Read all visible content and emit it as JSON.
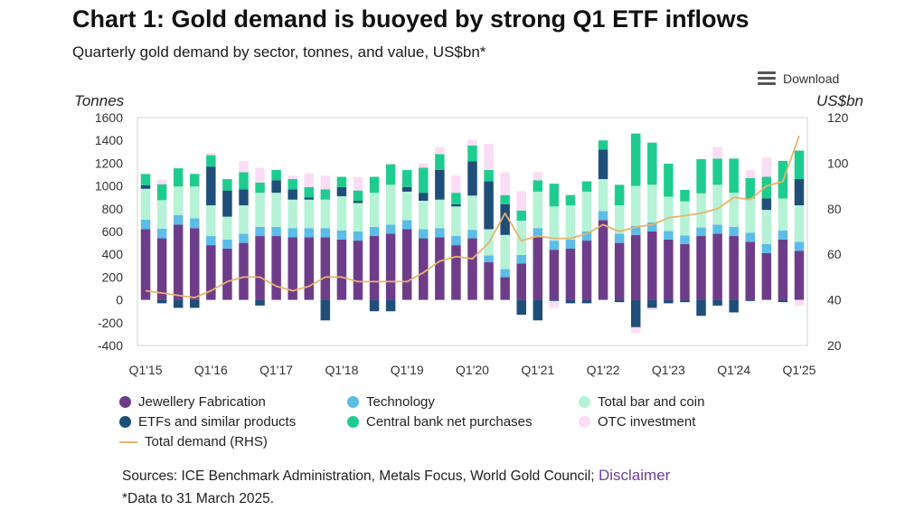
{
  "header": {
    "title": "Chart 1: Gold demand is buoyed by strong Q1 ETF inflows",
    "subtitle": "Quarterly gold demand by sector, tonnes, and value, US$bn*",
    "download_label": "Download"
  },
  "legend": {
    "jewellery": "Jewellery Fabrication",
    "technology": "Technology",
    "bar_coin": "Total bar and coin",
    "etf": "ETFs and similar products",
    "central_bank": "Central bank net purchases",
    "otc": "OTC investment",
    "total": "Total demand (RHS)"
  },
  "footer": {
    "sources": "Sources: ICE Benchmark Administration, Metals Focus, World Gold Council;",
    "disclaimer": "Disclaimer",
    "note": "*Data to 31 March 2025."
  },
  "colors": {
    "jewellery": "#6e3d8a",
    "technology": "#5bbde8",
    "bar_coin": "#b5f2d6",
    "etf": "#1f4e79",
    "central_bank": "#1fcc8f",
    "otc": "#fbdcf5",
    "total": "#e8b46a"
  },
  "chart_data": {
    "type": "bar",
    "stacked": true,
    "title": "Chart 1: Gold demand is buoyed by strong Q1 ETF inflows",
    "ylabel": "Tonnes",
    "y2label": "US$bn",
    "ylim": [
      -400,
      1600
    ],
    "y2lim": [
      20,
      120
    ],
    "yticks": [
      -400,
      -200,
      0,
      200,
      400,
      600,
      800,
      1000,
      1200,
      1400,
      1600
    ],
    "y2ticks": [
      20,
      40,
      60,
      80,
      100,
      120
    ],
    "xtick_labels": [
      "Q1'15",
      "Q1'16",
      "Q1'17",
      "Q1'18",
      "Q1'19",
      "Q1'20",
      "Q1'21",
      "Q1'22",
      "Q1'23",
      "Q1'24",
      "Q1'25"
    ],
    "categories": [
      "Q1'15",
      "Q2'15",
      "Q3'15",
      "Q4'15",
      "Q1'16",
      "Q2'16",
      "Q3'16",
      "Q4'16",
      "Q1'17",
      "Q2'17",
      "Q3'17",
      "Q4'17",
      "Q1'18",
      "Q2'18",
      "Q3'18",
      "Q4'18",
      "Q1'19",
      "Q2'19",
      "Q3'19",
      "Q4'19",
      "Q1'20",
      "Q2'20",
      "Q3'20",
      "Q4'20",
      "Q1'21",
      "Q2'21",
      "Q3'21",
      "Q4'21",
      "Q1'22",
      "Q2'22",
      "Q3'22",
      "Q4'22",
      "Q1'23",
      "Q2'23",
      "Q3'23",
      "Q4'23",
      "Q1'24",
      "Q2'24",
      "Q3'24",
      "Q4'24",
      "Q1'25"
    ],
    "series": [
      {
        "name": "Jewellery Fabrication",
        "key": "jewellery",
        "values": [
          620,
          540,
          660,
          630,
          480,
          450,
          500,
          560,
          560,
          550,
          550,
          550,
          530,
          520,
          560,
          580,
          620,
          540,
          550,
          480,
          540,
          330,
          200,
          320,
          550,
          440,
          450,
          520,
          700,
          500,
          570,
          600,
          530,
          490,
          560,
          580,
          560,
          510,
          410,
          530,
          430
        ]
      },
      {
        "name": "Technology",
        "key": "technology",
        "values": [
          85,
          85,
          85,
          85,
          80,
          80,
          80,
          80,
          80,
          80,
          80,
          80,
          80,
          80,
          80,
          80,
          80,
          80,
          80,
          80,
          75,
          60,
          70,
          75,
          80,
          80,
          80,
          80,
          80,
          80,
          80,
          80,
          75,
          75,
          75,
          80,
          80,
          80,
          80,
          80,
          80
        ]
      },
      {
        "name": "Total bar and coin",
        "key": "bar_coin",
        "values": [
          270,
          250,
          250,
          280,
          270,
          200,
          250,
          300,
          300,
          250,
          250,
          250,
          300,
          250,
          300,
          350,
          250,
          250,
          250,
          260,
          300,
          230,
          300,
          300,
          320,
          300,
          300,
          350,
          280,
          250,
          350,
          330,
          300,
          300,
          300,
          350,
          300,
          300,
          300,
          280,
          320
        ]
      },
      {
        "name": "ETFs and similar products",
        "key": "etf",
        "values": [
          30,
          -30,
          -70,
          -70,
          340,
          230,
          140,
          -50,
          110,
          90,
          20,
          -180,
          80,
          20,
          -100,
          -100,
          40,
          70,
          260,
          20,
          300,
          420,
          270,
          -130,
          -180,
          -10,
          -30,
          -30,
          260,
          -20,
          -240,
          -70,
          -30,
          -20,
          -140,
          -50,
          -110,
          -10,
          100,
          -20,
          230
        ]
      },
      {
        "name": "Central bank net purchases",
        "key": "central_bank",
        "values": [
          100,
          140,
          160,
          110,
          100,
          100,
          150,
          90,
          90,
          90,
          90,
          90,
          90,
          90,
          140,
          180,
          150,
          220,
          140,
          100,
          140,
          100,
          80,
          90,
          100,
          200,
          90,
          90,
          80,
          180,
          460,
          370,
          290,
          100,
          300,
          230,
          300,
          180,
          190,
          330,
          250
        ]
      },
      {
        "name": "OTC investment",
        "key": "otc",
        "values": [
          0,
          40,
          0,
          0,
          20,
          0,
          100,
          130,
          0,
          30,
          120,
          120,
          0,
          120,
          0,
          10,
          0,
          40,
          60,
          150,
          50,
          230,
          200,
          170,
          70,
          -60,
          0,
          0,
          0,
          0,
          -50,
          -20,
          0,
          0,
          0,
          100,
          0,
          70,
          170,
          0,
          -50
        ]
      },
      {
        "name": "Total demand (RHS)",
        "key": "total",
        "axis": "y2",
        "values": [
          44,
          43,
          42,
          41,
          44,
          48,
          50,
          50,
          46,
          44,
          46,
          50,
          50,
          48,
          48,
          48,
          48,
          52,
          57,
          59,
          58,
          65,
          78,
          66,
          68,
          67,
          67,
          69,
          73,
          70,
          72,
          73,
          76,
          77,
          78,
          80,
          85,
          84,
          90,
          92,
          112
        ]
      }
    ]
  }
}
